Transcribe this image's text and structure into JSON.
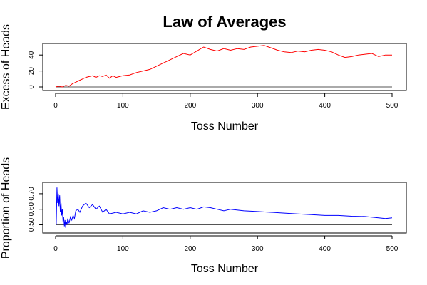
{
  "title": "Law of Averages",
  "colors": {
    "excess": "#ff0000",
    "proportion": "#0000ff",
    "reference": "#555555"
  },
  "chart_data": [
    {
      "type": "line",
      "xlabel": "Toss Number",
      "ylabel": "Excess of Heads",
      "xlim": [
        0,
        500
      ],
      "ylim": [
        0,
        50
      ],
      "xticks": [
        "0",
        "100",
        "200",
        "300",
        "400",
        "500"
      ],
      "yticks": [
        "0",
        "20",
        "40"
      ],
      "reference_line": {
        "y": 0
      },
      "series": [
        {
          "color": "#ff0000",
          "x": [
            0,
            5,
            10,
            15,
            20,
            25,
            30,
            35,
            40,
            45,
            50,
            55,
            60,
            65,
            70,
            75,
            80,
            85,
            90,
            95,
            100,
            110,
            120,
            130,
            140,
            150,
            160,
            170,
            180,
            190,
            200,
            210,
            220,
            230,
            240,
            250,
            260,
            270,
            280,
            290,
            300,
            310,
            320,
            330,
            340,
            350,
            360,
            370,
            380,
            390,
            400,
            410,
            420,
            430,
            440,
            450,
            460,
            470,
            480,
            490,
            500
          ],
          "y": [
            0,
            1,
            0,
            2,
            1,
            4,
            6,
            8,
            10,
            12,
            13,
            14,
            12,
            14,
            13,
            15,
            11,
            14,
            12,
            13,
            14,
            15,
            18,
            20,
            22,
            26,
            30,
            34,
            38,
            42,
            40,
            45,
            50,
            47,
            45,
            48,
            46,
            48,
            47,
            50,
            51,
            52,
            49,
            46,
            44,
            43,
            45,
            44,
            46,
            47,
            46,
            44,
            40,
            37,
            38,
            40,
            41,
            42,
            38,
            40,
            40
          ]
        }
      ]
    },
    {
      "type": "line",
      "xlabel": "Toss Number",
      "ylabel": "Proportion of Heads",
      "xlim": [
        0,
        500
      ],
      "ylim": [
        0.47,
        0.75
      ],
      "xticks": [
        "0",
        "100",
        "200",
        "300",
        "400",
        "500"
      ],
      "yticks": [
        "0.50",
        "0.60",
        "0.70"
      ],
      "reference_line": {
        "y": 0.5
      },
      "series": [
        {
          "color": "#0000ff",
          "x": [
            1,
            2,
            3,
            4,
            5,
            6,
            7,
            8,
            9,
            10,
            11,
            12,
            13,
            14,
            15,
            16,
            17,
            18,
            20,
            22,
            24,
            26,
            28,
            30,
            33,
            36,
            40,
            45,
            50,
            55,
            60,
            65,
            70,
            75,
            80,
            90,
            100,
            110,
            120,
            130,
            140,
            150,
            160,
            170,
            180,
            190,
            200,
            210,
            220,
            230,
            240,
            250,
            260,
            280,
            300,
            320,
            340,
            360,
            380,
            400,
            420,
            440,
            460,
            480,
            490,
            500
          ],
          "y": [
            0.5,
            0.74,
            0.64,
            0.7,
            0.62,
            0.69,
            0.58,
            0.64,
            0.56,
            0.6,
            0.52,
            0.55,
            0.49,
            0.53,
            0.48,
            0.52,
            0.5,
            0.54,
            0.51,
            0.55,
            0.53,
            0.56,
            0.54,
            0.59,
            0.6,
            0.58,
            0.62,
            0.64,
            0.61,
            0.63,
            0.6,
            0.62,
            0.58,
            0.6,
            0.57,
            0.58,
            0.57,
            0.58,
            0.57,
            0.59,
            0.58,
            0.59,
            0.61,
            0.6,
            0.61,
            0.6,
            0.61,
            0.6,
            0.615,
            0.61,
            0.6,
            0.59,
            0.6,
            0.59,
            0.585,
            0.58,
            0.575,
            0.57,
            0.565,
            0.56,
            0.56,
            0.555,
            0.553,
            0.545,
            0.54,
            0.545
          ]
        }
      ]
    }
  ]
}
